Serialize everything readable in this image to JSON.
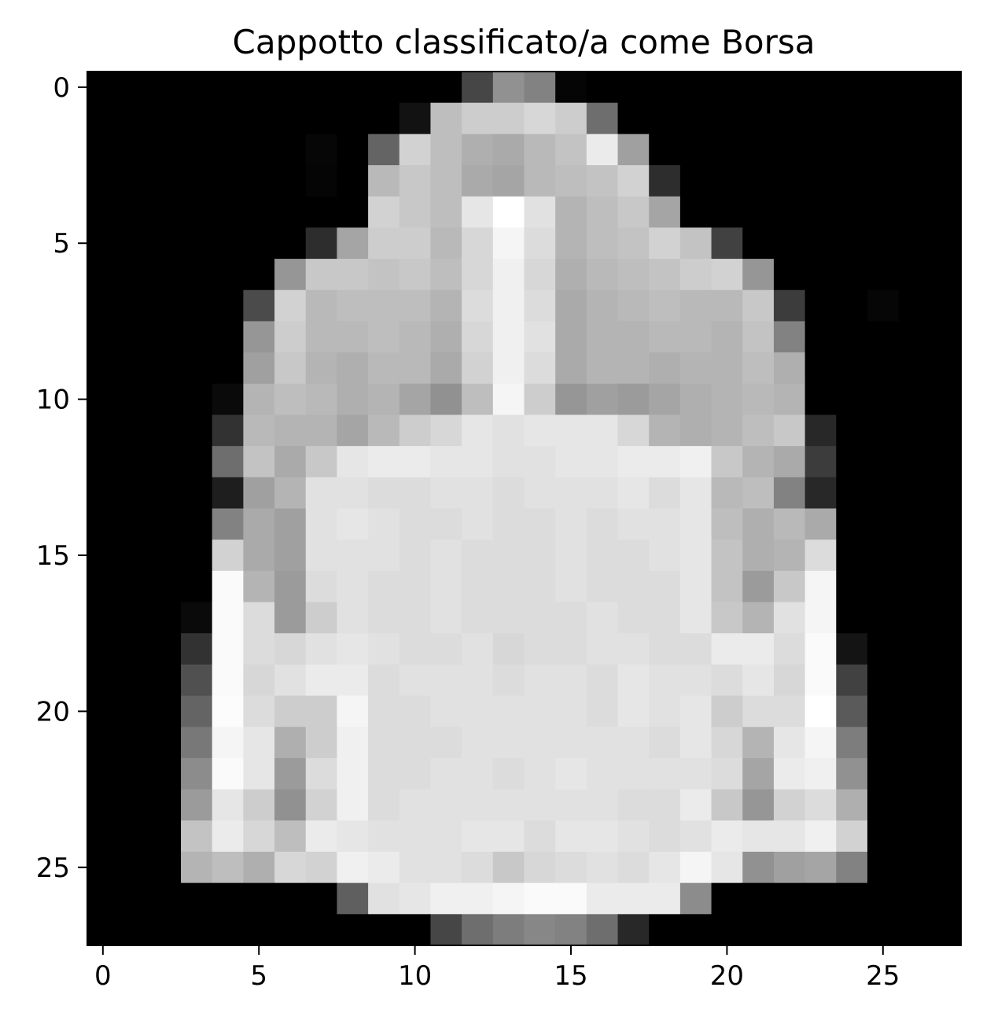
{
  "chart_data": {
    "type": "heatmap",
    "title": "Cappotto classificato/a come Borsa",
    "xlabel": "",
    "ylabel": "",
    "colormap": "gray",
    "value_range": [
      0,
      255
    ],
    "xlim": [
      -0.5,
      27.5
    ],
    "ylim": [
      27.5,
      -0.5
    ],
    "xticks": [
      0,
      5,
      10,
      15,
      20,
      25
    ],
    "yticks": [
      0,
      5,
      10,
      15,
      20,
      25
    ],
    "x_tick_labels": [
      "0",
      "5",
      "10",
      "15",
      "20",
      "25"
    ],
    "y_tick_labels": [
      "0",
      "5",
      "10",
      "15",
      "20",
      "25"
    ],
    "grid": false,
    "legend": "none",
    "rows": 28,
    "cols": 28,
    "pixels": [
      [
        0,
        0,
        0,
        0,
        0,
        0,
        0,
        0,
        0,
        0,
        0,
        0,
        70,
        145,
        130,
        5,
        0,
        0,
        0,
        0,
        0,
        0,
        0,
        0,
        0,
        0,
        0,
        0
      ],
      [
        0,
        0,
        0,
        0,
        0,
        0,
        0,
        0,
        0,
        0,
        18,
        190,
        205,
        205,
        215,
        205,
        110,
        0,
        0,
        0,
        0,
        0,
        0,
        0,
        0,
        0,
        0,
        0
      ],
      [
        0,
        0,
        0,
        0,
        0,
        0,
        0,
        6,
        0,
        100,
        210,
        190,
        175,
        170,
        185,
        195,
        235,
        160,
        0,
        0,
        0,
        0,
        0,
        0,
        0,
        0,
        0,
        0
      ],
      [
        0,
        0,
        0,
        0,
        0,
        0,
        0,
        5,
        0,
        185,
        200,
        190,
        170,
        165,
        185,
        190,
        195,
        210,
        45,
        0,
        0,
        0,
        0,
        0,
        0,
        0,
        0,
        0
      ],
      [
        0,
        0,
        0,
        0,
        0,
        0,
        0,
        0,
        0,
        210,
        200,
        190,
        230,
        255,
        225,
        180,
        190,
        200,
        165,
        0,
        0,
        0,
        0,
        0,
        0,
        0,
        0,
        0
      ],
      [
        0,
        0,
        0,
        0,
        0,
        0,
        0,
        45,
        165,
        205,
        205,
        185,
        215,
        245,
        220,
        180,
        190,
        195,
        210,
        195,
        65,
        0,
        0,
        0,
        0,
        0,
        0,
        0
      ],
      [
        0,
        0,
        0,
        0,
        0,
        0,
        150,
        200,
        200,
        195,
        200,
        190,
        215,
        240,
        215,
        175,
        185,
        190,
        195,
        205,
        210,
        150,
        0,
        0,
        0,
        0,
        0,
        0
      ],
      [
        0,
        0,
        0,
        0,
        0,
        75,
        210,
        185,
        190,
        190,
        190,
        180,
        220,
        240,
        220,
        170,
        180,
        185,
        190,
        185,
        185,
        200,
        60,
        0,
        0,
        6,
        0,
        0
      ],
      [
        0,
        0,
        0,
        0,
        0,
        150,
        205,
        185,
        185,
        190,
        185,
        175,
        215,
        240,
        225,
        170,
        180,
        180,
        185,
        185,
        180,
        195,
        130,
        0,
        0,
        0,
        0,
        0
      ],
      [
        0,
        0,
        0,
        0,
        0,
        160,
        200,
        180,
        175,
        185,
        185,
        170,
        210,
        240,
        220,
        170,
        180,
        180,
        175,
        180,
        180,
        190,
        175,
        0,
        0,
        0,
        0,
        0
      ],
      [
        0,
        0,
        0,
        0,
        10,
        180,
        190,
        185,
        175,
        180,
        165,
        145,
        190,
        245,
        205,
        150,
        160,
        155,
        165,
        175,
        180,
        185,
        180,
        0,
        0,
        0,
        0,
        0
      ],
      [
        0,
        0,
        0,
        0,
        50,
        185,
        180,
        180,
        165,
        185,
        205,
        215,
        230,
        225,
        230,
        230,
        230,
        215,
        180,
        175,
        180,
        190,
        200,
        40,
        0,
        0,
        0,
        0
      ],
      [
        0,
        0,
        0,
        0,
        110,
        195,
        170,
        200,
        230,
        235,
        235,
        230,
        230,
        225,
        225,
        230,
        230,
        235,
        235,
        240,
        200,
        180,
        170,
        60,
        0,
        0,
        0,
        0
      ],
      [
        0,
        0,
        0,
        0,
        30,
        160,
        180,
        225,
        225,
        220,
        220,
        225,
        225,
        220,
        225,
        225,
        225,
        230,
        220,
        230,
        185,
        190,
        130,
        40,
        0,
        0,
        0,
        0
      ],
      [
        0,
        0,
        0,
        0,
        130,
        170,
        160,
        225,
        230,
        225,
        220,
        220,
        225,
        220,
        220,
        225,
        220,
        225,
        225,
        230,
        190,
        175,
        185,
        170,
        0,
        0,
        0,
        0
      ],
      [
        0,
        0,
        0,
        0,
        210,
        170,
        160,
        225,
        225,
        225,
        220,
        225,
        220,
        220,
        220,
        225,
        220,
        220,
        225,
        230,
        195,
        175,
        180,
        220,
        0,
        0,
        0,
        0
      ],
      [
        0,
        0,
        0,
        0,
        250,
        180,
        155,
        220,
        225,
        220,
        220,
        225,
        220,
        220,
        220,
        225,
        220,
        220,
        220,
        230,
        195,
        155,
        200,
        245,
        0,
        0,
        0,
        0
      ],
      [
        0,
        0,
        0,
        10,
        250,
        220,
        155,
        205,
        225,
        220,
        220,
        225,
        220,
        220,
        220,
        220,
        225,
        220,
        220,
        230,
        200,
        180,
        225,
        245,
        0,
        0,
        0,
        0
      ],
      [
        0,
        0,
        0,
        50,
        250,
        220,
        215,
        225,
        230,
        225,
        220,
        220,
        225,
        215,
        220,
        220,
        225,
        225,
        220,
        220,
        235,
        235,
        220,
        250,
        20,
        0,
        0,
        0
      ],
      [
        0,
        0,
        0,
        80,
        250,
        215,
        225,
        235,
        235,
        220,
        225,
        225,
        225,
        220,
        225,
        225,
        220,
        230,
        225,
        225,
        220,
        230,
        215,
        250,
        65,
        0,
        0,
        0
      ],
      [
        0,
        0,
        0,
        100,
        252,
        220,
        205,
        205,
        245,
        220,
        220,
        225,
        225,
        225,
        225,
        225,
        220,
        230,
        225,
        230,
        205,
        220,
        220,
        255,
        90,
        0,
        0,
        0
      ],
      [
        0,
        0,
        0,
        120,
        245,
        230,
        175,
        205,
        240,
        220,
        220,
        220,
        225,
        225,
        225,
        225,
        225,
        225,
        220,
        230,
        215,
        180,
        230,
        245,
        125,
        0,
        0,
        0
      ],
      [
        0,
        0,
        0,
        140,
        250,
        230,
        155,
        220,
        240,
        220,
        220,
        225,
        225,
        220,
        225,
        230,
        225,
        225,
        225,
        225,
        220,
        165,
        235,
        240,
        145,
        0,
        0,
        0
      ],
      [
        0,
        0,
        0,
        155,
        230,
        205,
        145,
        210,
        240,
        220,
        225,
        225,
        225,
        225,
        225,
        225,
        225,
        220,
        220,
        235,
        200,
        150,
        210,
        220,
        175,
        0,
        0,
        0
      ],
      [
        0,
        0,
        0,
        195,
        235,
        215,
        190,
        235,
        230,
        225,
        225,
        225,
        230,
        230,
        220,
        230,
        230,
        225,
        220,
        225,
        235,
        230,
        230,
        240,
        210,
        0,
        0,
        0
      ],
      [
        0,
        0,
        0,
        180,
        190,
        175,
        215,
        210,
        240,
        235,
        225,
        225,
        220,
        200,
        215,
        220,
        225,
        220,
        230,
        245,
        230,
        145,
        160,
        165,
        130,
        0,
        0,
        0
      ],
      [
        0,
        0,
        0,
        0,
        0,
        0,
        0,
        0,
        95,
        225,
        230,
        240,
        240,
        245,
        250,
        250,
        235,
        235,
        235,
        140,
        0,
        0,
        0,
        0,
        0,
        0,
        0,
        0
      ],
      [
        0,
        0,
        0,
        0,
        0,
        0,
        0,
        0,
        0,
        0,
        0,
        70,
        110,
        125,
        135,
        130,
        110,
        40,
        0,
        0,
        0,
        0,
        0,
        0,
        0,
        0,
        0,
        0
      ]
    ]
  }
}
